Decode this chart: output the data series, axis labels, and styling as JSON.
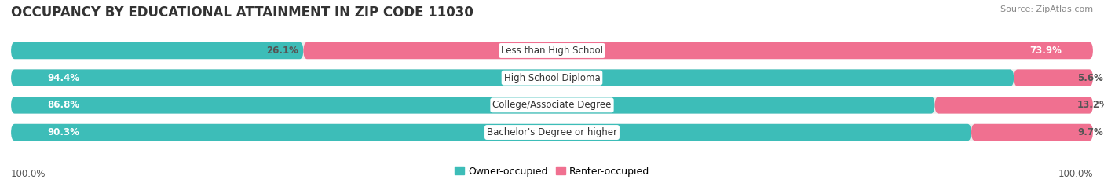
{
  "title": "OCCUPANCY BY EDUCATIONAL ATTAINMENT IN ZIP CODE 11030",
  "source": "Source: ZipAtlas.com",
  "categories": [
    "Less than High School",
    "High School Diploma",
    "College/Associate Degree",
    "Bachelor's Degree or higher"
  ],
  "owner_pct": [
    26.1,
    94.4,
    86.8,
    90.3
  ],
  "renter_pct": [
    73.9,
    5.6,
    13.2,
    9.7
  ],
  "owner_color": "#3dbdb8",
  "renter_color": "#f07090",
  "bg_color": "#ffffff",
  "row_bg_color": "#eeeeee",
  "title_fontsize": 12,
  "label_fontsize": 8.5,
  "tick_fontsize": 8.5,
  "source_fontsize": 8,
  "legend_fontsize": 9,
  "bar_height": 0.62,
  "x_left_label": "100.0%",
  "x_right_label": "100.0%"
}
